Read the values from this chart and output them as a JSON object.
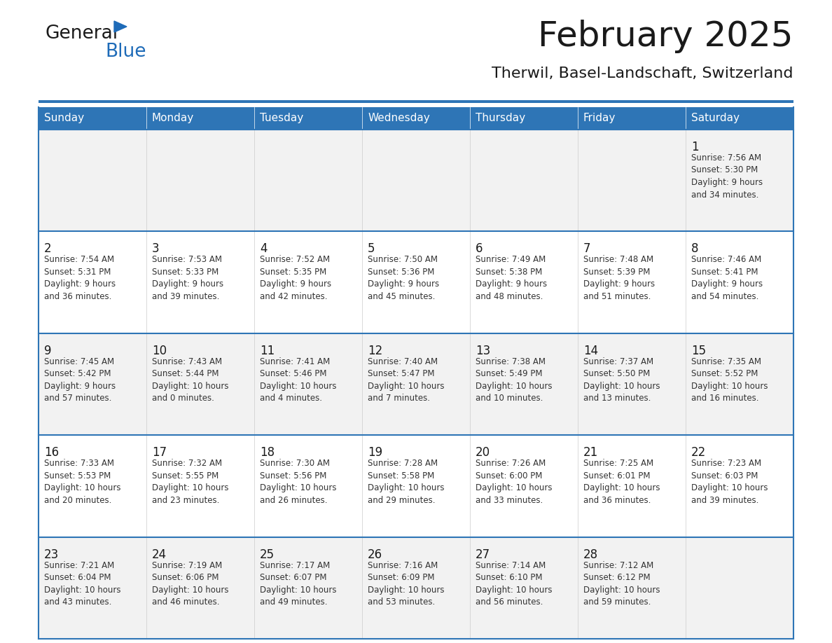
{
  "title": "February 2025",
  "subtitle": "Therwil, Basel-Landschaft, Switzerland",
  "days_of_week": [
    "Sunday",
    "Monday",
    "Tuesday",
    "Wednesday",
    "Thursday",
    "Friday",
    "Saturday"
  ],
  "header_bg": "#2E75B6",
  "header_text": "#FFFFFF",
  "cell_bg_odd": "#F2F2F2",
  "cell_bg_even": "#FFFFFF",
  "cell_border_color": "#B0C4D8",
  "row_top_line_color": "#2E75B6",
  "day_num_color": "#1a1a1a",
  "info_color": "#333333",
  "title_color": "#1a1a1a",
  "subtitle_color": "#1a1a1a",
  "logo_general_color": "#1a1a1a",
  "logo_blue_color": "#1E6BB8",
  "weeks": [
    {
      "days": [
        {
          "date": null,
          "info": ""
        },
        {
          "date": null,
          "info": ""
        },
        {
          "date": null,
          "info": ""
        },
        {
          "date": null,
          "info": ""
        },
        {
          "date": null,
          "info": ""
        },
        {
          "date": null,
          "info": ""
        },
        {
          "date": 1,
          "info": "Sunrise: 7:56 AM\nSunset: 5:30 PM\nDaylight: 9 hours\nand 34 minutes."
        }
      ]
    },
    {
      "days": [
        {
          "date": 2,
          "info": "Sunrise: 7:54 AM\nSunset: 5:31 PM\nDaylight: 9 hours\nand 36 minutes."
        },
        {
          "date": 3,
          "info": "Sunrise: 7:53 AM\nSunset: 5:33 PM\nDaylight: 9 hours\nand 39 minutes."
        },
        {
          "date": 4,
          "info": "Sunrise: 7:52 AM\nSunset: 5:35 PM\nDaylight: 9 hours\nand 42 minutes."
        },
        {
          "date": 5,
          "info": "Sunrise: 7:50 AM\nSunset: 5:36 PM\nDaylight: 9 hours\nand 45 minutes."
        },
        {
          "date": 6,
          "info": "Sunrise: 7:49 AM\nSunset: 5:38 PM\nDaylight: 9 hours\nand 48 minutes."
        },
        {
          "date": 7,
          "info": "Sunrise: 7:48 AM\nSunset: 5:39 PM\nDaylight: 9 hours\nand 51 minutes."
        },
        {
          "date": 8,
          "info": "Sunrise: 7:46 AM\nSunset: 5:41 PM\nDaylight: 9 hours\nand 54 minutes."
        }
      ]
    },
    {
      "days": [
        {
          "date": 9,
          "info": "Sunrise: 7:45 AM\nSunset: 5:42 PM\nDaylight: 9 hours\nand 57 minutes."
        },
        {
          "date": 10,
          "info": "Sunrise: 7:43 AM\nSunset: 5:44 PM\nDaylight: 10 hours\nand 0 minutes."
        },
        {
          "date": 11,
          "info": "Sunrise: 7:41 AM\nSunset: 5:46 PM\nDaylight: 10 hours\nand 4 minutes."
        },
        {
          "date": 12,
          "info": "Sunrise: 7:40 AM\nSunset: 5:47 PM\nDaylight: 10 hours\nand 7 minutes."
        },
        {
          "date": 13,
          "info": "Sunrise: 7:38 AM\nSunset: 5:49 PM\nDaylight: 10 hours\nand 10 minutes."
        },
        {
          "date": 14,
          "info": "Sunrise: 7:37 AM\nSunset: 5:50 PM\nDaylight: 10 hours\nand 13 minutes."
        },
        {
          "date": 15,
          "info": "Sunrise: 7:35 AM\nSunset: 5:52 PM\nDaylight: 10 hours\nand 16 minutes."
        }
      ]
    },
    {
      "days": [
        {
          "date": 16,
          "info": "Sunrise: 7:33 AM\nSunset: 5:53 PM\nDaylight: 10 hours\nand 20 minutes."
        },
        {
          "date": 17,
          "info": "Sunrise: 7:32 AM\nSunset: 5:55 PM\nDaylight: 10 hours\nand 23 minutes."
        },
        {
          "date": 18,
          "info": "Sunrise: 7:30 AM\nSunset: 5:56 PM\nDaylight: 10 hours\nand 26 minutes."
        },
        {
          "date": 19,
          "info": "Sunrise: 7:28 AM\nSunset: 5:58 PM\nDaylight: 10 hours\nand 29 minutes."
        },
        {
          "date": 20,
          "info": "Sunrise: 7:26 AM\nSunset: 6:00 PM\nDaylight: 10 hours\nand 33 minutes."
        },
        {
          "date": 21,
          "info": "Sunrise: 7:25 AM\nSunset: 6:01 PM\nDaylight: 10 hours\nand 36 minutes."
        },
        {
          "date": 22,
          "info": "Sunrise: 7:23 AM\nSunset: 6:03 PM\nDaylight: 10 hours\nand 39 minutes."
        }
      ]
    },
    {
      "days": [
        {
          "date": 23,
          "info": "Sunrise: 7:21 AM\nSunset: 6:04 PM\nDaylight: 10 hours\nand 43 minutes."
        },
        {
          "date": 24,
          "info": "Sunrise: 7:19 AM\nSunset: 6:06 PM\nDaylight: 10 hours\nand 46 minutes."
        },
        {
          "date": 25,
          "info": "Sunrise: 7:17 AM\nSunset: 6:07 PM\nDaylight: 10 hours\nand 49 minutes."
        },
        {
          "date": 26,
          "info": "Sunrise: 7:16 AM\nSunset: 6:09 PM\nDaylight: 10 hours\nand 53 minutes."
        },
        {
          "date": 27,
          "info": "Sunrise: 7:14 AM\nSunset: 6:10 PM\nDaylight: 10 hours\nand 56 minutes."
        },
        {
          "date": 28,
          "info": "Sunrise: 7:12 AM\nSunset: 6:12 PM\nDaylight: 10 hours\nand 59 minutes."
        },
        {
          "date": null,
          "info": ""
        }
      ]
    }
  ]
}
